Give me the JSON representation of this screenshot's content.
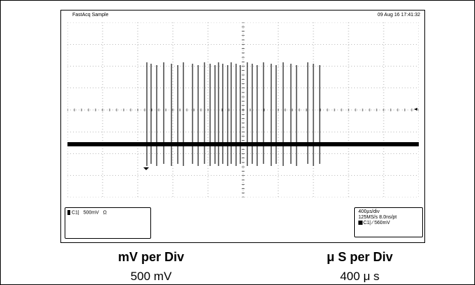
{
  "scope": {
    "mode_label": "FastAcq Sample",
    "timestamp": "09 Aug 16 17:41:32",
    "channel_box": {
      "channel": "C1|",
      "scale": "500mV",
      "coupling_symbol": "Ω"
    },
    "timebase_box": {
      "line1": "400µs/div",
      "line2": "125MS/s   8.0ns/pt",
      "line3": "C1| ⁄ 560mV"
    },
    "accent_color": "#000000"
  },
  "labels": {
    "volts_title": "mV per Div",
    "volts_value": "500 mV",
    "time_title": "μ S per Div",
    "time_value": "400 μ s"
  }
}
